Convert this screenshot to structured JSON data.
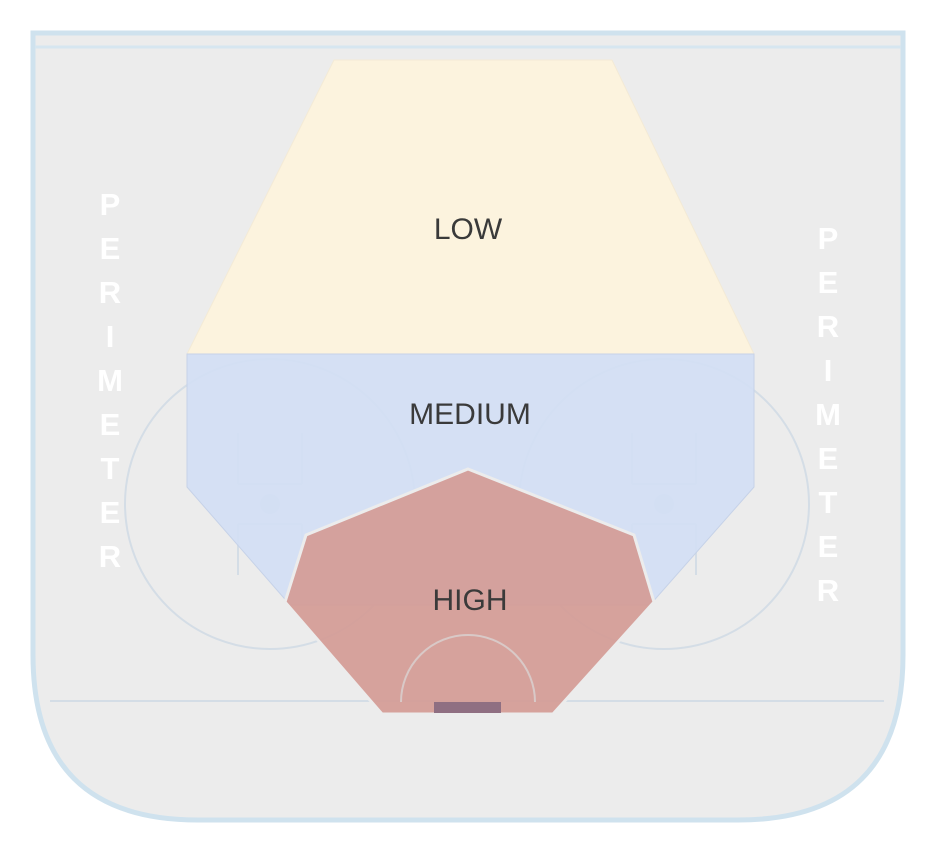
{
  "zones": {
    "low": {
      "label": "LOW",
      "color": "#fdf3dd"
    },
    "medium": {
      "label": "MEDIUM",
      "color": "#d3def4"
    },
    "high": {
      "label": "HIGH",
      "color": "#d49a93"
    }
  },
  "perimeter": {
    "left": [
      "P",
      "E",
      "R",
      "I",
      "M",
      "E",
      "T",
      "E",
      "R"
    ],
    "right": [
      "P",
      "E",
      "R",
      "I",
      "M",
      "E",
      "T",
      "E",
      "R"
    ]
  },
  "colors": {
    "ice": "#ececec",
    "boards": "#cfe2ee",
    "markings": "#d4dde6",
    "net": "#8f6f82"
  }
}
